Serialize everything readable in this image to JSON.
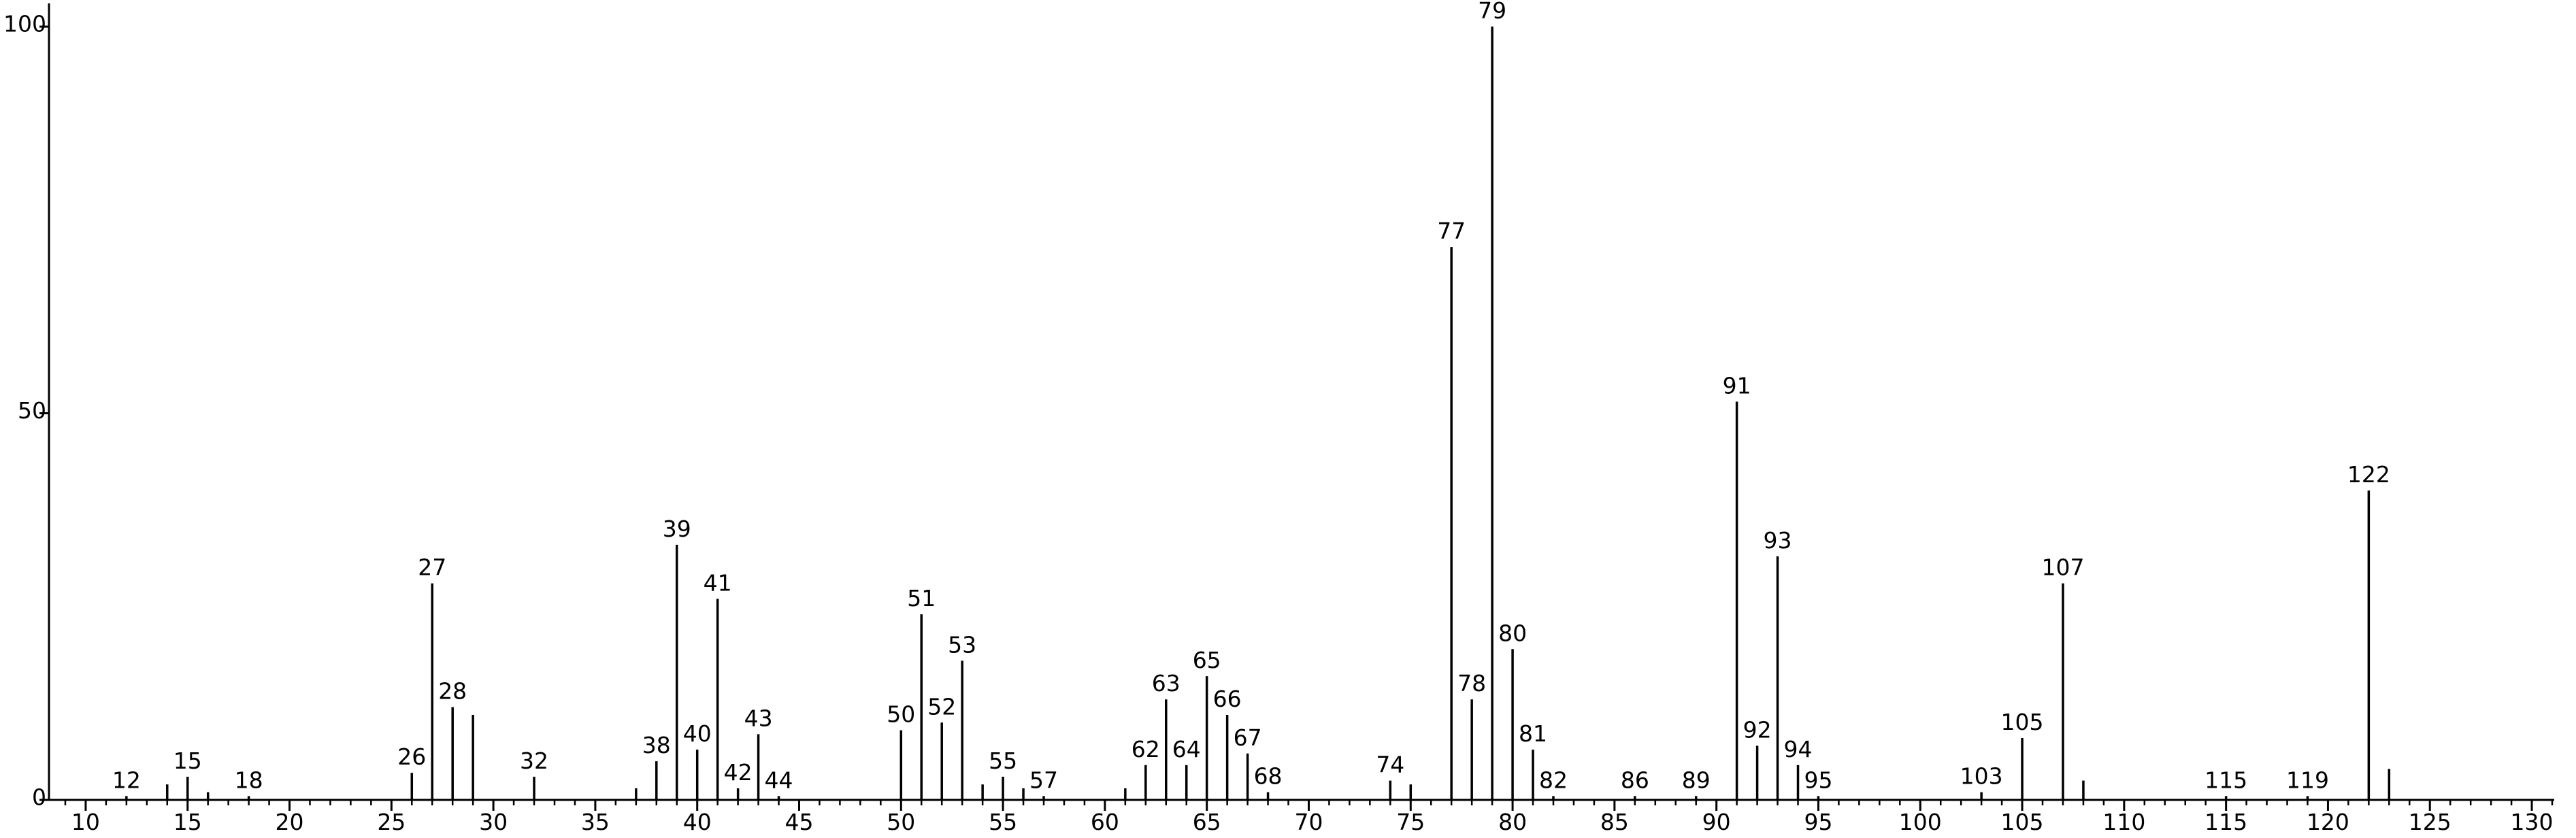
{
  "chart_data": {
    "type": "stick",
    "x": [
      12,
      14,
      15,
      16,
      18,
      26,
      27,
      28,
      29,
      32,
      37,
      38,
      39,
      40,
      41,
      42,
      43,
      44,
      50,
      51,
      52,
      53,
      54,
      55,
      56,
      57,
      61,
      62,
      63,
      64,
      65,
      66,
      67,
      68,
      74,
      75,
      77,
      78,
      79,
      80,
      81,
      82,
      86,
      89,
      91,
      92,
      93,
      94,
      95,
      103,
      105,
      107,
      108,
      115,
      119,
      122,
      123
    ],
    "values": [
      0.5,
      2,
      3,
      1,
      0.5,
      3.5,
      28,
      12,
      11,
      3,
      1.5,
      5,
      33,
      6.5,
      26,
      1.5,
      8.5,
      0.5,
      9,
      24,
      10,
      18,
      2,
      3,
      1.5,
      0.5,
      1.5,
      4.5,
      13,
      4.5,
      16,
      11,
      6,
      1,
      2.5,
      2,
      71.5,
      13,
      100,
      19.5,
      6.5,
      0.5,
      0.5,
      0.5,
      51.5,
      7,
      31.5,
      4.5,
      0.5,
      1,
      8,
      28,
      2.5,
      0.5,
      0.5,
      40,
      4
    ],
    "show_label": [
      true,
      false,
      true,
      false,
      true,
      true,
      true,
      true,
      false,
      true,
      false,
      true,
      true,
      true,
      true,
      true,
      true,
      true,
      true,
      true,
      true,
      true,
      false,
      true,
      false,
      true,
      false,
      true,
      true,
      true,
      true,
      true,
      true,
      true,
      true,
      false,
      true,
      true,
      true,
      true,
      true,
      true,
      true,
      true,
      true,
      true,
      true,
      true,
      true,
      true,
      true,
      true,
      false,
      true,
      true,
      true,
      false
    ],
    "color": "#000000",
    "xlim": [
      8.2,
      131.1
    ],
    "ylim": [
      0,
      103
    ],
    "xticks": [
      10,
      15,
      20,
      25,
      30,
      35,
      40,
      45,
      50,
      55,
      60,
      65,
      70,
      75,
      80,
      85,
      90,
      95,
      100,
      105,
      110,
      115,
      120,
      125,
      130
    ],
    "x_minor_ticks": [
      9,
      11,
      12,
      13,
      14,
      16,
      17,
      18,
      19,
      21,
      22,
      23,
      24,
      26,
      27,
      28,
      29,
      31,
      32,
      33,
      34,
      36,
      37,
      38,
      39,
      41,
      42,
      43,
      44,
      46,
      47,
      48,
      49,
      51,
      52,
      53,
      54,
      56,
      57,
      58,
      59,
      61,
      62,
      63,
      64,
      66,
      67,
      68,
      69,
      71,
      72,
      73,
      74,
      76,
      77,
      78,
      79,
      81,
      82,
      83,
      84,
      86,
      87,
      88,
      89,
      91,
      92,
      93,
      94,
      96,
      97,
      98,
      99,
      101,
      102,
      103,
      104,
      106,
      107,
      108,
      109,
      111,
      112,
      113,
      114,
      116,
      117,
      118,
      119,
      121,
      122,
      123,
      124,
      126,
      127,
      128,
      129,
      131
    ],
    "yticks": [
      0,
      50,
      100
    ]
  }
}
